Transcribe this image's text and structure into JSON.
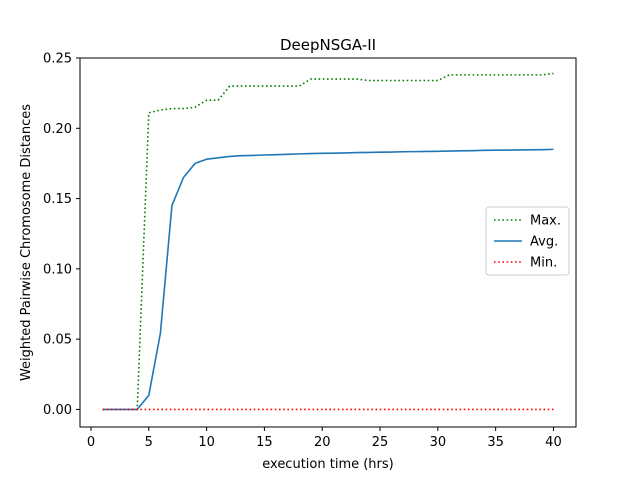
{
  "chart_data": {
    "type": "line",
    "title": "DeepNSGA-II",
    "xlabel": "execution time (hrs)",
    "ylabel": "Weighted Pairwise Chromosome Distances",
    "xlim": [
      -0.95,
      41.95
    ],
    "ylim": [
      -0.0125,
      0.25
    ],
    "xticks": [
      0,
      5,
      10,
      15,
      20,
      25,
      30,
      35,
      40
    ],
    "yticks": [
      0.0,
      0.05,
      0.1,
      0.15,
      0.2,
      0.25
    ],
    "xtick_labels": [
      "0",
      "5",
      "10",
      "15",
      "20",
      "25",
      "30",
      "35",
      "40"
    ],
    "ytick_labels": [
      "0.00",
      "0.05",
      "0.10",
      "0.15",
      "0.20",
      "0.25"
    ],
    "grid": false,
    "legend_position": "center-right",
    "series": [
      {
        "name": "Max.",
        "color": "#008000",
        "style": "dotted",
        "x": [
          1,
          2,
          3,
          4,
          5,
          6,
          7,
          8,
          9,
          10,
          11,
          12,
          13,
          14,
          15,
          16,
          17,
          18,
          19,
          20,
          21,
          22,
          23,
          24,
          25,
          26,
          27,
          28,
          29,
          30,
          31,
          32,
          33,
          34,
          35,
          36,
          37,
          38,
          39,
          40
        ],
        "values": [
          0.0,
          0.0,
          0.0,
          0.0,
          0.211,
          0.213,
          0.214,
          0.214,
          0.215,
          0.22,
          0.22,
          0.23,
          0.23,
          0.23,
          0.23,
          0.23,
          0.23,
          0.23,
          0.235,
          0.235,
          0.235,
          0.235,
          0.235,
          0.234,
          0.234,
          0.234,
          0.234,
          0.234,
          0.234,
          0.234,
          0.238,
          0.238,
          0.238,
          0.238,
          0.238,
          0.238,
          0.238,
          0.238,
          0.238,
          0.239
        ]
      },
      {
        "name": "Avg.",
        "color": "#1f77b4",
        "style": "solid",
        "x": [
          1,
          2,
          3,
          4,
          5,
          6,
          7,
          8,
          9,
          10,
          11,
          12,
          13,
          14,
          15,
          16,
          17,
          18,
          19,
          20,
          21,
          22,
          23,
          24,
          25,
          26,
          27,
          28,
          29,
          30,
          31,
          32,
          33,
          34,
          35,
          36,
          37,
          38,
          39,
          40
        ],
        "values": [
          0.0,
          0.0,
          0.0,
          0.0,
          0.01,
          0.054,
          0.145,
          0.165,
          0.175,
          0.178,
          0.179,
          0.18,
          0.1805,
          0.1807,
          0.181,
          0.1812,
          0.1815,
          0.1818,
          0.182,
          0.1822,
          0.1823,
          0.1825,
          0.1827,
          0.1828,
          0.183,
          0.1831,
          0.1833,
          0.1834,
          0.1835,
          0.1836,
          0.1838,
          0.184,
          0.1841,
          0.1843,
          0.1844,
          0.1845,
          0.1846,
          0.1847,
          0.1848,
          0.185
        ]
      },
      {
        "name": "Min.",
        "color": "#ff0000",
        "style": "dotted",
        "x": [
          1,
          2,
          3,
          4,
          5,
          6,
          7,
          8,
          9,
          10,
          11,
          12,
          13,
          14,
          15,
          16,
          17,
          18,
          19,
          20,
          21,
          22,
          23,
          24,
          25,
          26,
          27,
          28,
          29,
          30,
          31,
          32,
          33,
          34,
          35,
          36,
          37,
          38,
          39,
          40
        ],
        "values": [
          0.0,
          0.0,
          0.0,
          0.0,
          0.0,
          0.0,
          0.0,
          0.0,
          0.0,
          0.0,
          0.0,
          0.0,
          0.0,
          0.0,
          0.0,
          0.0,
          0.0,
          0.0,
          0.0,
          0.0,
          0.0,
          0.0,
          0.0,
          0.0,
          0.0,
          0.0,
          0.0,
          0.0,
          0.0,
          0.0,
          0.0,
          0.0,
          0.0,
          0.0,
          0.0,
          0.0,
          0.0,
          0.0,
          0.0,
          0.0
        ]
      }
    ]
  }
}
